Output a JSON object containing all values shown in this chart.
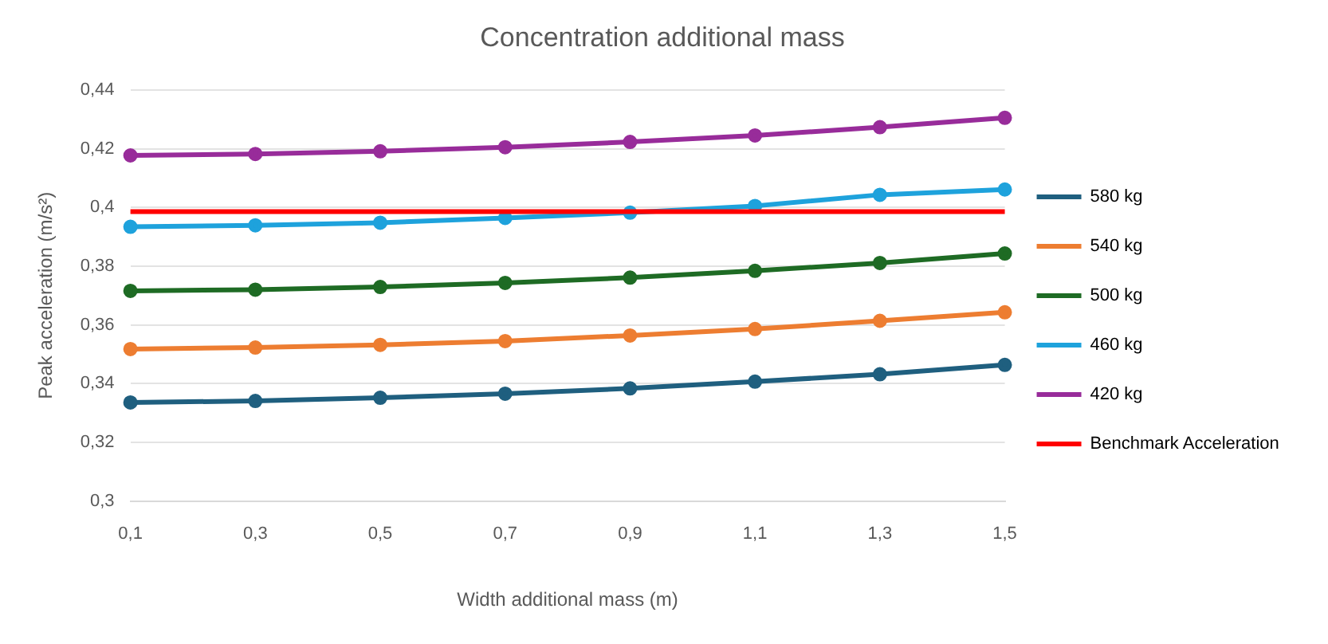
{
  "chart_data": {
    "type": "line",
    "title": "Concentration additional mass",
    "xlabel": "Width additional mass (m)",
    "ylabel": "Peak acceleration (m/s²)",
    "categories": [
      "0,1",
      "0,3",
      "0,5",
      "0,7",
      "0,9",
      "1,1",
      "1,3",
      "1,5"
    ],
    "series": [
      {
        "name": "580 kg",
        "color": "#1f5f7f",
        "values": [
          0.3336,
          0.3341,
          0.3352,
          0.3366,
          0.3384,
          0.3407,
          0.3432,
          0.3464
        ]
      },
      {
        "name": "540 kg",
        "color": "#ed7d31",
        "values": [
          0.3518,
          0.3523,
          0.3532,
          0.3545,
          0.3564,
          0.3586,
          0.3614,
          0.3643
        ]
      },
      {
        "name": "500 kg",
        "color": "#1e6b24",
        "values": [
          0.3716,
          0.372,
          0.3729,
          0.3743,
          0.3761,
          0.3784,
          0.3811,
          0.3843
        ]
      },
      {
        "name": "460 kg",
        "color": "#1ea2dc",
        "values": [
          0.3934,
          0.3939,
          0.3948,
          0.3964,
          0.3982,
          0.4005,
          0.4043,
          0.4061
        ]
      },
      {
        "name": "420 kg",
        "color": "#982c9a",
        "values": [
          0.4177,
          0.4182,
          0.4191,
          0.4205,
          0.4223,
          0.4245,
          0.4273,
          0.4305
        ]
      },
      {
        "name": "Benchmark Acceleration",
        "color": "#ff0000",
        "marker": "none",
        "values": [
          0.3986,
          0.3986,
          0.3986,
          0.3986,
          0.3986,
          0.3986,
          0.3986,
          0.3986
        ]
      }
    ],
    "ylim": [
      0.3,
      0.44
    ],
    "yticks": [
      {
        "value": 0.3,
        "label": "0,3"
      },
      {
        "value": 0.32,
        "label": "0,32"
      },
      {
        "value": 0.34,
        "label": "0,34"
      },
      {
        "value": 0.36,
        "label": "0,36"
      },
      {
        "value": 0.38,
        "label": "0,38"
      },
      {
        "value": 0.4,
        "label": "0,4"
      },
      {
        "value": 0.42,
        "label": "0,42"
      },
      {
        "value": 0.44,
        "label": "0,44"
      }
    ],
    "grid": "y",
    "legend": "right",
    "marker": "circle",
    "line_style": "solid"
  }
}
